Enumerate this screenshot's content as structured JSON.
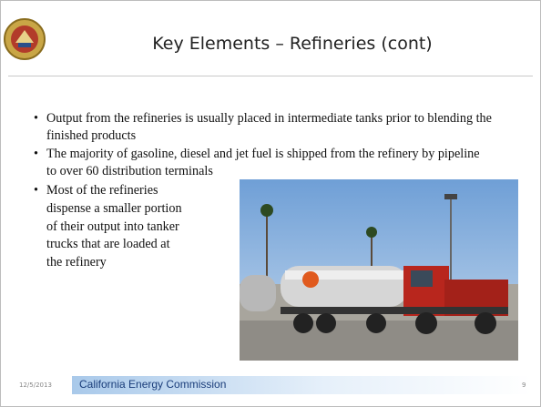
{
  "header": {
    "title": "Key Elements – Refineries (cont)"
  },
  "bullets": [
    "Output from the refineries is usually placed in intermediate tanks prior to blending the finished products",
    "The majority of gasoline, diesel and jet fuel is shipped from the refinery by pipeline to over 60 distribution terminals",
    "Most of the refineries dispense a smaller portion of their output into tanker trucks that are loaded at the refinery"
  ],
  "footer": {
    "date": "12/5/2013",
    "organization": "California Energy Commission",
    "page": "9"
  }
}
